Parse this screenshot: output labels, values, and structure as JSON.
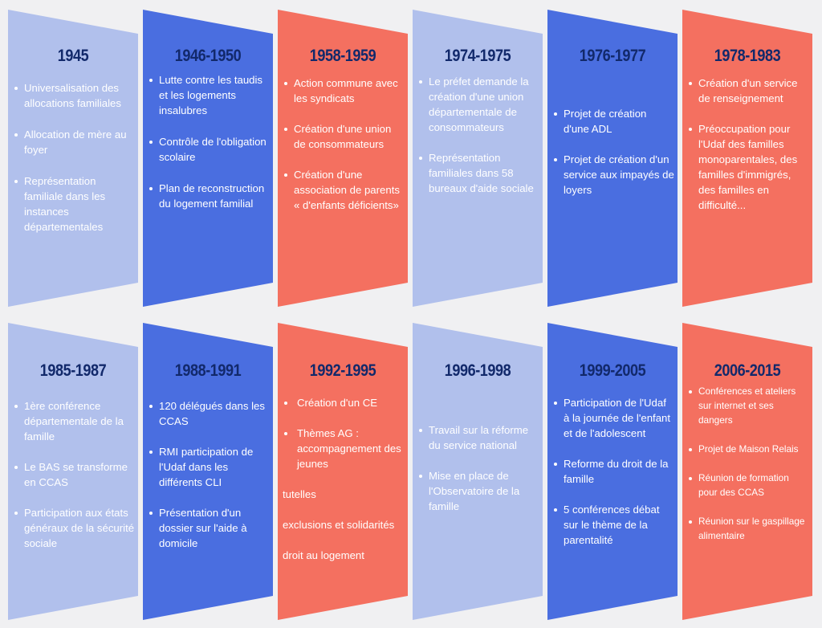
{
  "colors": {
    "light": "#b1c0ec",
    "blue": "#4a6ee0",
    "coral": "#f47060",
    "year_text": "#12296b",
    "background": "#f0f0f2"
  },
  "rows": [
    [
      {
        "year": "1945",
        "color": "light",
        "items": [
          " Universalisation des allocations familiales",
          " Allocation de mère au foyer",
          "Représentation familiale dans les instances départementales"
        ]
      },
      {
        "year": "1946-1950",
        "color": "blue",
        "items": [
          "Lutte contre les taudis et les logements insalubres",
          "Contrôle de l'obligation scolaire",
          "Plan de reconstruction du logement familial"
        ]
      },
      {
        "year": "1958-1959",
        "color": "coral",
        "items": [
          "Action commune avec les syndicats",
          "Création d'une union de consommateurs",
          "Création d'une association de parents « d'enfants déficients»"
        ]
      },
      {
        "year": "1974-1975",
        "color": "light",
        "items": [
          "Le préfet demande la création d'une union départementale de consommateurs",
          "Représentation familiales dans 58 bureaux d'aide sociale"
        ]
      },
      {
        "year": "1976-1977",
        "color": "blue",
        "items": [
          "Projet de création d'une ADL",
          " Projet de création d'un service aux impayés de loyers"
        ]
      },
      {
        "year": "1978-1983",
        "color": "coral",
        "items": [
          "Création d'un service de renseignement",
          "Préoccupation pour l'Udaf des familles monoparentales, des familles d'immigrés, des familles en difficulté..."
        ]
      }
    ],
    [
      {
        "year": "1985-1987",
        "color": "light",
        "items": [
          "1ère conférence départementale de la famille",
          "Le BAS se transforme en CCAS",
          "Participation aux états généraux de la sécurité sociale"
        ]
      },
      {
        "year": "1988-1991",
        "color": "blue",
        "items": [
          "120 délégués dans les CCAS",
          "RMI participation de l'Udaf dans les différents CLI",
          "Présentation d'un dossier sur l'aide à domicile"
        ]
      },
      {
        "year": "1992-1995",
        "color": "coral",
        "items": [
          "Création d'un CE",
          "Thèmes AG : accompagnement des jeunes",
          "tutelles",
          "exclusions et solidarités",
          "droit au logement"
        ]
      },
      {
        "year": "1996-1998",
        "color": "light",
        "items": [
          "Travail sur la réforme du service national",
          "Mise en place de l'Observatoire de la famille"
        ]
      },
      {
        "year": "1999-2005",
        "color": "blue",
        "items": [
          " Participation de l'Udaf à la journée de l'enfant et de l'adolescent",
          "Reforme du droit de la famille",
          "5 conférences débat sur le thème de la parentalité"
        ]
      },
      {
        "year": "2006-2015",
        "color": "coral",
        "items": [
          " Conférences et ateliers sur internet et ses dangers",
          "Projet de Maison Relais",
          "Réunion de formation pour des CCAS",
          "Réunion sur le gaspillage alimentaire"
        ]
      }
    ]
  ]
}
